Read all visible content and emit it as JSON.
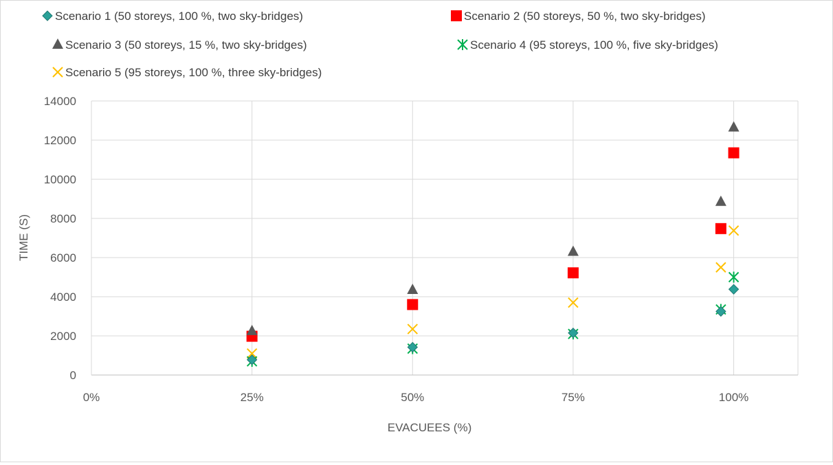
{
  "chart_data": {
    "type": "scatter",
    "xlabel": "EVACUEES (%)",
    "ylabel": "TIME (S)",
    "xlim": [
      0,
      1.1
    ],
    "ylim": [
      0,
      14000
    ],
    "x_ticks": [
      0,
      0.25,
      0.5,
      0.75,
      1.0
    ],
    "x_tick_labels": [
      "0%",
      "25%",
      "50%",
      "75%",
      "100%"
    ],
    "y_ticks": [
      0,
      2000,
      4000,
      6000,
      8000,
      10000,
      12000,
      14000
    ],
    "y_tick_labels": [
      "0",
      "2000",
      "4000",
      "6000",
      "8000",
      "10000",
      "12000",
      "14000"
    ],
    "grid": true,
    "legend_position": "top",
    "series": [
      {
        "name": "Scenario 1 (50 storeys, 100 %, two sky-bridges)",
        "marker": "diamond",
        "color": "#2aa198",
        "points": [
          [
            0.25,
            780
          ],
          [
            0.5,
            1420
          ],
          [
            0.75,
            2150
          ],
          [
            0.98,
            3250
          ],
          [
            1.0,
            4380
          ]
        ]
      },
      {
        "name": "Scenario 2 (50 storeys, 50 %, two sky-bridges)",
        "marker": "square",
        "color": "#ff0000",
        "points": [
          [
            0.25,
            1980
          ],
          [
            0.5,
            3600
          ],
          [
            0.75,
            5220
          ],
          [
            0.98,
            7480
          ],
          [
            1.0,
            11350
          ]
        ]
      },
      {
        "name": "Scenario 3 (50 storeys, 15 %, two sky-bridges)",
        "marker": "triangle",
        "color": "#595959",
        "points": [
          [
            0.25,
            2250
          ],
          [
            0.5,
            4350
          ],
          [
            0.75,
            6300
          ],
          [
            0.98,
            8850
          ],
          [
            1.0,
            12650
          ]
        ]
      },
      {
        "name": "Scenario 4 (95 storeys, 100 %, five sky-bridges)",
        "marker": "asterisk",
        "color": "#00b050",
        "points": [
          [
            0.25,
            700
          ],
          [
            0.5,
            1350
          ],
          [
            0.75,
            2100
          ],
          [
            0.98,
            3350
          ],
          [
            1.0,
            5000
          ]
        ]
      },
      {
        "name": "Scenario 5 (95 storeys, 100 %, three sky-bridges)",
        "marker": "x",
        "color": "#ffc000",
        "points": [
          [
            0.25,
            1100
          ],
          [
            0.5,
            2350
          ],
          [
            0.75,
            3700
          ],
          [
            0.98,
            5500
          ],
          [
            1.0,
            7380
          ]
        ]
      }
    ]
  }
}
